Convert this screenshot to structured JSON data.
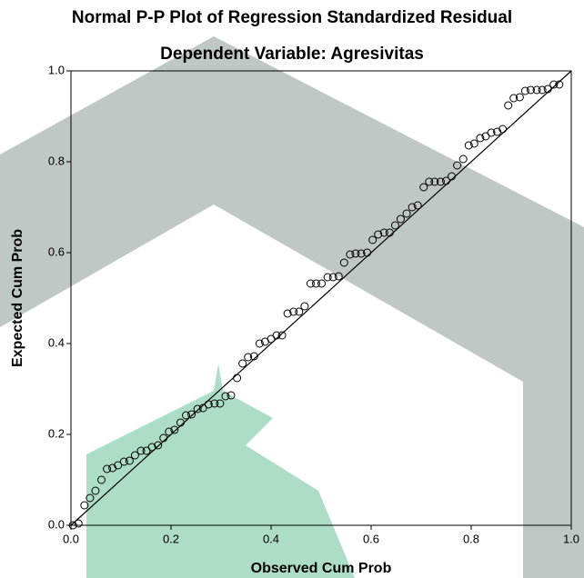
{
  "chart_data": {
    "type": "scatter",
    "title": "Normal P-P Plot of Regression Standardized Residual",
    "subtitle": "Dependent Variable: Agresivitas",
    "x_label": "Observed Cum Prob",
    "y_label": "Expected Cum Prob",
    "color": "#000000",
    "reference_line": true,
    "xlim": [
      0,
      1
    ],
    "ylim": [
      0,
      1
    ],
    "xticks": [
      {
        "value": 0,
        "label": "0.0"
      },
      {
        "value": 0.2,
        "label": "0.2"
      },
      {
        "value": 0.4,
        "label": "0.4"
      },
      {
        "value": 0.6,
        "label": "0.6"
      },
      {
        "value": 0.8,
        "label": "0.8"
      },
      {
        "value": 1,
        "label": "1.0"
      }
    ],
    "yticks": [
      {
        "value": 0,
        "label": "0.0"
      },
      {
        "value": 0.2,
        "label": "0.2"
      },
      {
        "value": 0.4,
        "label": "0.4"
      },
      {
        "value": 0.6,
        "label": "0.6"
      },
      {
        "value": 0.8,
        "label": "0.8"
      },
      {
        "value": 1,
        "label": "1.0"
      }
    ],
    "x": [
      0.004,
      0.015,
      0.027,
      0.038,
      0.049,
      0.061,
      0.072,
      0.083,
      0.094,
      0.106,
      0.117,
      0.128,
      0.14,
      0.151,
      0.162,
      0.174,
      0.185,
      0.196,
      0.207,
      0.219,
      0.23,
      0.241,
      0.253,
      0.264,
      0.275,
      0.287,
      0.298,
      0.309,
      0.32,
      0.332,
      0.343,
      0.354,
      0.366,
      0.377,
      0.388,
      0.4,
      0.411,
      0.422,
      0.433,
      0.445,
      0.456,
      0.467,
      0.479,
      0.49,
      0.501,
      0.513,
      0.524,
      0.535,
      0.546,
      0.558,
      0.569,
      0.58,
      0.592,
      0.603,
      0.614,
      0.626,
      0.637,
      0.648,
      0.659,
      0.671,
      0.682,
      0.693,
      0.705,
      0.716,
      0.727,
      0.739,
      0.75,
      0.761,
      0.772,
      0.784,
      0.795,
      0.806,
      0.818,
      0.829,
      0.84,
      0.852,
      0.863,
      0.874,
      0.885,
      0.897,
      0.908,
      0.919,
      0.931,
      0.942,
      0.953,
      0.965,
      0.976
    ],
    "values": [
      0.0,
      0.004,
      0.044,
      0.06,
      0.076,
      0.1,
      0.124,
      0.126,
      0.132,
      0.14,
      0.142,
      0.154,
      0.164,
      0.164,
      0.172,
      0.176,
      0.192,
      0.206,
      0.21,
      0.226,
      0.242,
      0.244,
      0.256,
      0.258,
      0.266,
      0.268,
      0.268,
      0.284,
      0.286,
      0.324,
      0.356,
      0.37,
      0.372,
      0.4,
      0.404,
      0.41,
      0.418,
      0.418,
      0.466,
      0.47,
      0.47,
      0.482,
      0.532,
      0.532,
      0.532,
      0.546,
      0.546,
      0.548,
      0.578,
      0.596,
      0.598,
      0.598,
      0.6,
      0.628,
      0.64,
      0.644,
      0.644,
      0.66,
      0.674,
      0.686,
      0.7,
      0.704,
      0.744,
      0.756,
      0.756,
      0.756,
      0.758,
      0.768,
      0.792,
      0.806,
      0.836,
      0.84,
      0.852,
      0.856,
      0.864,
      0.866,
      0.872,
      0.924,
      0.94,
      0.942,
      0.956,
      0.958,
      0.958,
      0.958,
      0.96,
      0.97,
      0.97
    ]
  }
}
